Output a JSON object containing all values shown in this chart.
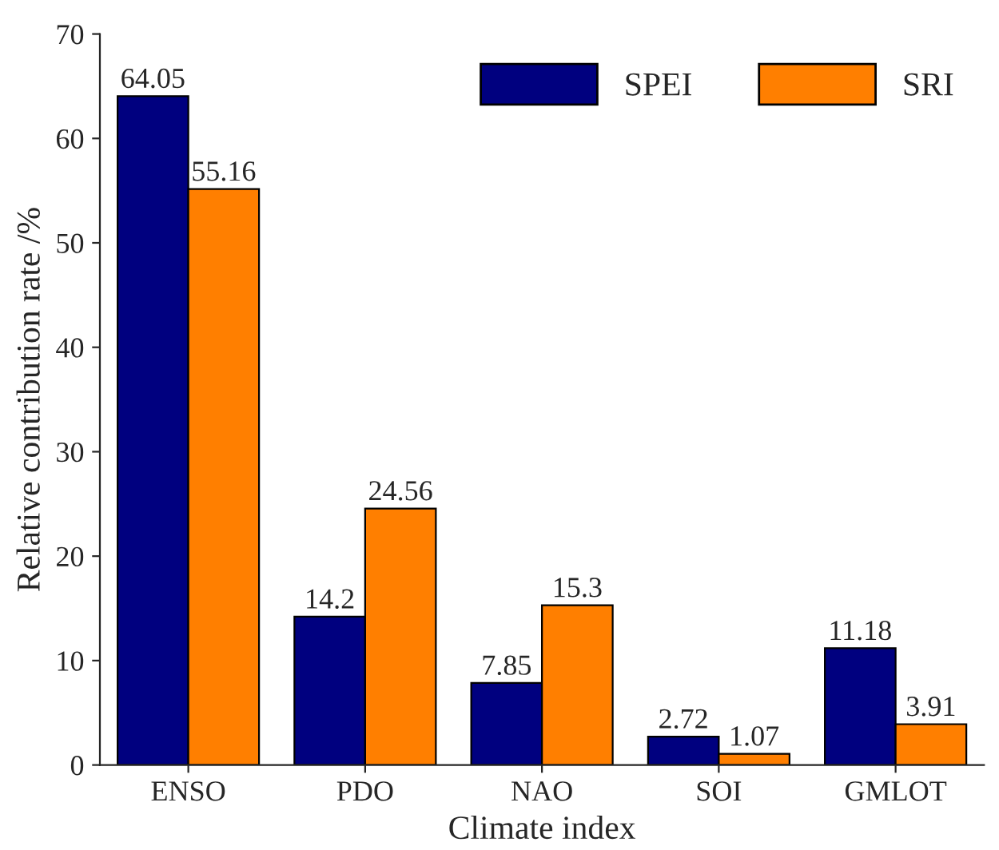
{
  "chart_data": {
    "type": "bar",
    "xlabel": "Climate index",
    "ylabel": "Relative contribution rate /%",
    "categories": [
      "ENSO",
      "PDO",
      "NAO",
      "SOI",
      "GMLOT"
    ],
    "series": [
      {
        "name": "SPEI",
        "color": "#00007f",
        "values": [
          64.05,
          14.2,
          7.85,
          2.72,
          11.18
        ]
      },
      {
        "name": "SRI",
        "color": "#ff7f00",
        "values": [
          55.16,
          24.56,
          15.3,
          1.07,
          3.91
        ]
      }
    ],
    "ylim": [
      0,
      70
    ],
    "yticks": [
      0,
      10,
      20,
      30,
      40,
      50,
      60,
      70
    ],
    "data_labels": true,
    "legend": "top right",
    "grid": false
  }
}
